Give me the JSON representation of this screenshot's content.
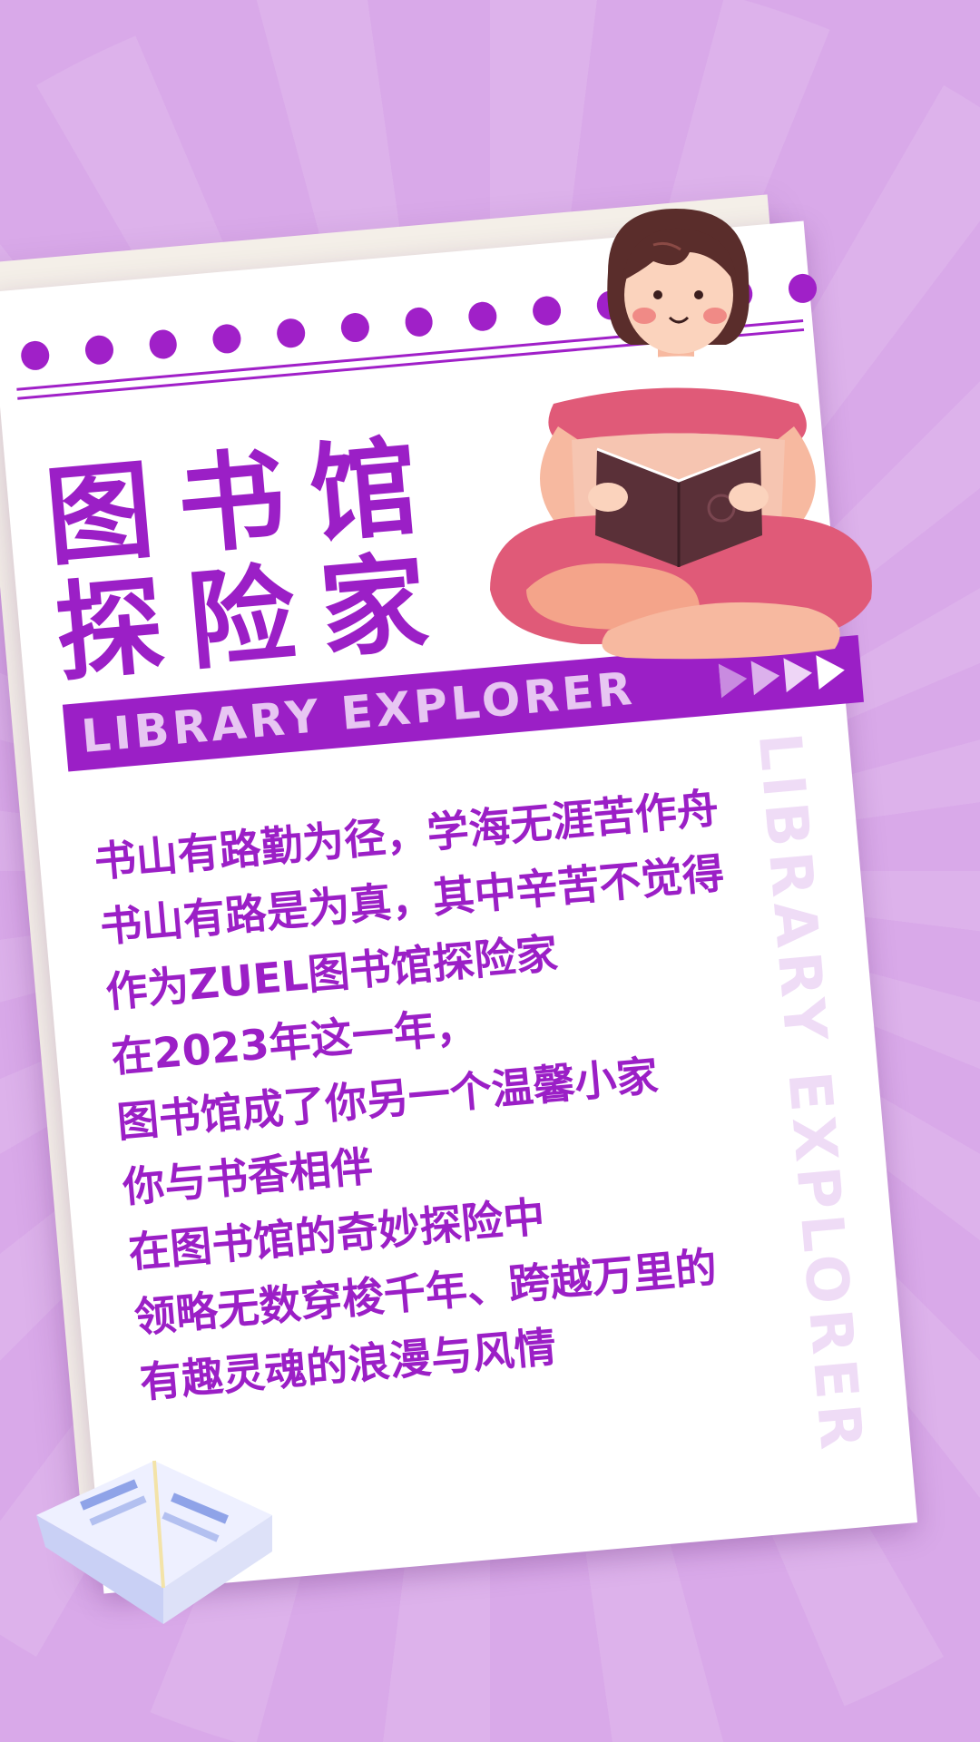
{
  "title": {
    "line1": "图书馆",
    "line2": "探险家"
  },
  "banner": {
    "label": "LIBRARY EXPLORER"
  },
  "vertical_text": "LIBRARY EXPLORER",
  "verse": [
    "书山有路勤为径，学海无涯苦作舟",
    "书山有路是为真，其中辛苦不觉得",
    "作为ZUEL图书馆探险家",
    "在2023年这一年，",
    "图书馆成了你另一个温馨小家",
    "你与书香相伴",
    "在图书馆的奇妙探险中",
    "领略无数穿梭千年、跨越万里的",
    "有趣灵魂的浪漫与风情"
  ],
  "colors": {
    "background": "#d9a9e9",
    "accent": "#9b1fc6",
    "paper": "#ffffff"
  },
  "icons": {
    "illustration": "girl-reading-book-icon",
    "decoration": "open-book-icon",
    "banner_arrows": "triple-arrow-icon"
  }
}
